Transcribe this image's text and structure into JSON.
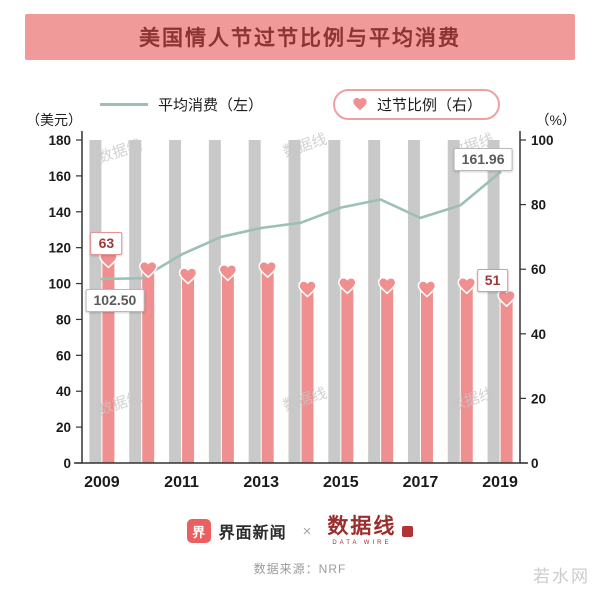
{
  "page_title": "美国情人节过节比例与平均消费",
  "legend": {
    "line": "平均消费（左）",
    "bar": "过节比例（右）"
  },
  "chart_data": {
    "type": "bar+line",
    "title": "美国情人节过节比例与平均消费",
    "x": [
      2009,
      2010,
      2011,
      2012,
      2013,
      2014,
      2015,
      2016,
      2017,
      2018,
      2019
    ],
    "x_tick_labels": [
      "2009",
      "2011",
      "2013",
      "2015",
      "2017",
      "2019"
    ],
    "left_axis": {
      "label": "（美元）",
      "min": 0,
      "max": 180,
      "step": 20
    },
    "right_axis": {
      "label": "（%）",
      "min": 0,
      "max": 100,
      "step": 20
    },
    "background_bars": {
      "value": 100,
      "color": "#c9c9c9"
    },
    "series": [
      {
        "name": "平均消费（左）",
        "type": "line",
        "axis": "left",
        "color": "#9cc0b6",
        "values": [
          102.5,
          103.0,
          116.21,
          126.03,
          130.97,
          133.91,
          142.31,
          146.84,
          136.57,
          143.56,
          161.96
        ]
      },
      {
        "name": "过节比例（右）",
        "type": "bar",
        "axis": "right",
        "color": "#f08f8f",
        "values": [
          63,
          60,
          58,
          59,
          60,
          54,
          55,
          55,
          54,
          55,
          51
        ]
      }
    ],
    "annotations": [
      {
        "x": 2009,
        "series": "过节比例（右）",
        "text": "63"
      },
      {
        "x": 2009,
        "series": "平均消费（左）",
        "text": "102.50"
      },
      {
        "x": 2019,
        "series": "平均消费（左）",
        "text": "161.96"
      },
      {
        "x": 2019,
        "series": "过节比例（右）",
        "text": "51"
      }
    ],
    "legend_position": "top",
    "grid": false
  },
  "watermark": {
    "stamp": "数据线",
    "corner": "若水网"
  },
  "footer": {
    "jiemian_label": "界面新闻",
    "jiemian_icon_glyph": "界",
    "separator": "×",
    "logo_text": "数据线",
    "logo_subtext": "DATA WIRE",
    "source": "数据来源：NRF"
  },
  "colors": {
    "banner_bg": "#f09a9a",
    "banner_text": "#8d3333",
    "bar_pink": "#f08f8f",
    "bar_gray": "#c9c9c9",
    "line_teal": "#9cc0b6",
    "callout_red": "#a03737"
  }
}
